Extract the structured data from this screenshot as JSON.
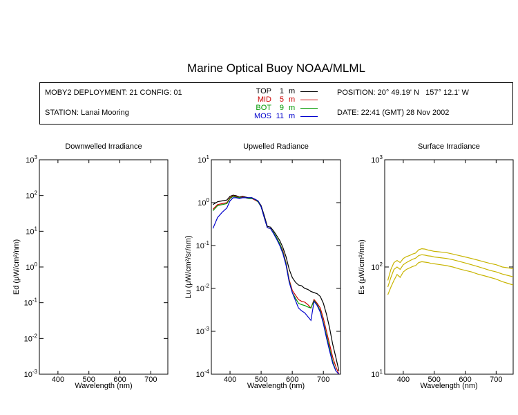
{
  "title": "Marine Optical Buoy NOAA/MLML",
  "info": {
    "deployment": "MOBY2 DEPLOYMENT: 21 CONFIG: 01",
    "station": "STATION: Lanai Mooring",
    "position": "POSITION: 20° 49.19' N   157° 12.1' W",
    "date": "DATE: 22:41 (GMT) 28 Nov 2002"
  },
  "legend": [
    {
      "name": "TOP",
      "depth": "1",
      "unit": "m",
      "color": "#000000"
    },
    {
      "name": "MID",
      "depth": "5",
      "unit": "m",
      "color": "#cc0000"
    },
    {
      "name": "BOT",
      "depth": "9",
      "unit": "m",
      "color": "#009900"
    },
    {
      "name": "MOS",
      "depth": "11",
      "unit": "m",
      "color": "#0000cc"
    }
  ],
  "chart_data": [
    {
      "type": "line",
      "title": "Downwelled Irradiance",
      "xlabel": "Wavelength (nm)",
      "ylabel": "Ed  (μW/cm²/nm)",
      "xlim": [
        340,
        755
      ],
      "ylim": [
        0.001,
        1000
      ],
      "yscale": "log",
      "xticks": [
        "400",
        "500",
        "600",
        "700"
      ],
      "yticks": [
        {
          "base": "10",
          "exp": "-3"
        },
        {
          "base": "10",
          "exp": "-2"
        },
        {
          "base": "10",
          "exp": "-1"
        },
        {
          "base": "10",
          "exp": "0"
        },
        {
          "base": "10",
          "exp": "1"
        },
        {
          "base": "10",
          "exp": "2"
        },
        {
          "base": "10",
          "exp": "3"
        }
      ],
      "series": []
    },
    {
      "type": "line",
      "title": "Upwelled Radiance",
      "xlabel": "Wavelength (nm)",
      "ylabel": "Lu  (μW/cm²/sr/nm)",
      "xlim": [
        340,
        755
      ],
      "ylim": [
        0.0001,
        10
      ],
      "yscale": "log",
      "xticks": [
        "400",
        "500",
        "600",
        "700"
      ],
      "yticks": [
        {
          "base": "10",
          "exp": "-4"
        },
        {
          "base": "10",
          "exp": "-3"
        },
        {
          "base": "10",
          "exp": "-2"
        },
        {
          "base": "10",
          "exp": "-1"
        },
        {
          "base": "10",
          "exp": "0"
        },
        {
          "base": "10",
          "exp": "1"
        }
      ],
      "series": [
        {
          "name": "TOP",
          "color": "#000000",
          "x": [
            345,
            360,
            375,
            390,
            400,
            410,
            420,
            430,
            440,
            450,
            460,
            470,
            480,
            490,
            500,
            510,
            520,
            530,
            540,
            550,
            560,
            570,
            580,
            590,
            600,
            610,
            620,
            630,
            640,
            650,
            660,
            670,
            680,
            690,
            700,
            710,
            720,
            730,
            740,
            750
          ],
          "y": [
            0.9,
            1.05,
            1.1,
            1.15,
            1.4,
            1.5,
            1.45,
            1.35,
            1.4,
            1.35,
            1.3,
            1.3,
            1.2,
            1.1,
            0.85,
            0.5,
            0.28,
            0.27,
            0.22,
            0.17,
            0.13,
            0.09,
            0.055,
            0.028,
            0.018,
            0.014,
            0.012,
            0.0115,
            0.01,
            0.0095,
            0.0085,
            0.008,
            0.0075,
            0.0065,
            0.0045,
            0.0025,
            0.0012,
            0.0005,
            0.00025,
            0.00012
          ]
        },
        {
          "name": "MID",
          "color": "#cc0000",
          "x": [
            345,
            360,
            375,
            390,
            400,
            410,
            420,
            430,
            440,
            450,
            460,
            470,
            480,
            490,
            500,
            510,
            520,
            530,
            540,
            550,
            560,
            570,
            580,
            590,
            600,
            610,
            620,
            630,
            640,
            650,
            660,
            670,
            680,
            690,
            700,
            710,
            720,
            730,
            740,
            750
          ],
          "y": [
            0.7,
            0.9,
            0.95,
            1.0,
            1.3,
            1.45,
            1.4,
            1.3,
            1.35,
            1.3,
            1.25,
            1.25,
            1.15,
            1.05,
            0.8,
            0.45,
            0.26,
            0.25,
            0.2,
            0.15,
            0.11,
            0.075,
            0.04,
            0.016,
            0.009,
            0.007,
            0.0055,
            0.005,
            0.0048,
            0.0042,
            0.0035,
            0.0055,
            0.0045,
            0.0035,
            0.002,
            0.001,
            0.0005,
            0.00025,
            0.00015,
            0.0001
          ]
        },
        {
          "name": "BOT",
          "color": "#009900",
          "x": [
            345,
            360,
            375,
            390,
            400,
            410,
            420,
            430,
            440,
            450,
            460,
            470,
            480,
            490,
            500,
            510,
            520,
            530,
            540,
            550,
            560,
            570,
            580,
            590,
            600,
            610,
            620,
            630,
            640,
            650,
            660,
            670,
            680,
            690,
            700,
            710,
            720,
            730,
            740
          ],
          "y": [
            0.65,
            0.85,
            0.9,
            0.95,
            1.25,
            1.4,
            1.35,
            1.3,
            1.3,
            1.3,
            1.25,
            1.25,
            1.2,
            1.05,
            0.8,
            0.45,
            0.26,
            0.25,
            0.2,
            0.15,
            0.11,
            0.07,
            0.038,
            0.015,
            0.008,
            0.006,
            0.0045,
            0.0042,
            0.004,
            0.0037,
            0.0035,
            0.0052,
            0.0042,
            0.003,
            0.0016,
            0.0008,
            0.0004,
            0.0002,
            0.00012
          ]
        },
        {
          "name": "MOS",
          "color": "#0000cc",
          "x": [
            345,
            360,
            375,
            390,
            400,
            410,
            420,
            430,
            440,
            450,
            460,
            470,
            480,
            490,
            500,
            510,
            520,
            530,
            540,
            550,
            560,
            570,
            580,
            590,
            600,
            620,
            630,
            640,
            650,
            660,
            670,
            680,
            690,
            700,
            710,
            720,
            730,
            740,
            750
          ],
          "y": [
            0.25,
            0.45,
            0.6,
            0.75,
            1.1,
            1.3,
            1.3,
            1.25,
            1.3,
            1.3,
            1.3,
            1.3,
            1.2,
            1.1,
            0.8,
            0.45,
            0.26,
            0.25,
            0.19,
            0.14,
            0.1,
            0.065,
            0.035,
            0.014,
            0.008,
            0.0035,
            0.003,
            0.0027,
            0.0022,
            0.0018,
            0.005,
            0.004,
            0.0028,
            0.0015,
            0.0007,
            0.00035,
            0.00018,
            0.00012,
            0.0001
          ]
        }
      ]
    },
    {
      "type": "line",
      "title": "Surface Irradiance",
      "xlabel": "Wavelength (nm)",
      "ylabel": "Es  (μW/cm²/nm)",
      "xlim": [
        340,
        755
      ],
      "ylim": [
        10,
        1000
      ],
      "yscale": "log",
      "xticks": [
        "400",
        "500",
        "600",
        "700"
      ],
      "yticks": [
        {
          "base": "10",
          "exp": "1"
        },
        {
          "base": "10",
          "exp": "2"
        },
        {
          "base": "10",
          "exp": "3"
        }
      ],
      "series": [
        {
          "color": "#c8b400",
          "x": [
            350,
            360,
            370,
            380,
            390,
            400,
            410,
            420,
            430,
            440,
            450,
            460,
            470,
            480,
            490,
            500,
            520,
            540,
            560,
            580,
            600,
            620,
            640,
            660,
            680,
            700,
            720,
            740,
            755
          ],
          "y": [
            75,
            95,
            110,
            115,
            110,
            120,
            125,
            128,
            132,
            135,
            145,
            148,
            147,
            144,
            142,
            140,
            138,
            136,
            132,
            128,
            124,
            120,
            116,
            112,
            108,
            105,
            100,
            98,
            96
          ]
        },
        {
          "color": "#c8b400",
          "x": [
            350,
            360,
            370,
            380,
            390,
            400,
            410,
            420,
            430,
            440,
            450,
            460,
            470,
            480,
            490,
            500,
            520,
            540,
            560,
            580,
            600,
            620,
            640,
            660,
            680,
            700,
            720,
            740,
            755
          ],
          "y": [
            65,
            80,
            95,
            100,
            95,
            105,
            110,
            114,
            118,
            121,
            128,
            130,
            129,
            127,
            126,
            124,
            122,
            120,
            117,
            113,
            109,
            105,
            101,
            97,
            93,
            90,
            86,
            83,
            81
          ]
        },
        {
          "color": "#c8b400",
          "x": [
            350,
            360,
            370,
            380,
            390,
            400,
            410,
            420,
            430,
            440,
            450,
            460,
            470,
            480,
            490,
            500,
            520,
            540,
            560,
            580,
            600,
            620,
            640,
            660,
            680,
            700,
            720,
            740,
            755
          ],
          "y": [
            55,
            65,
            75,
            85,
            80,
            90,
            95,
            98,
            101,
            103,
            110,
            112,
            111,
            110,
            108,
            107,
            105,
            103,
            100,
            96,
            93,
            90,
            86,
            83,
            80,
            77,
            73,
            70,
            68
          ]
        }
      ]
    }
  ]
}
